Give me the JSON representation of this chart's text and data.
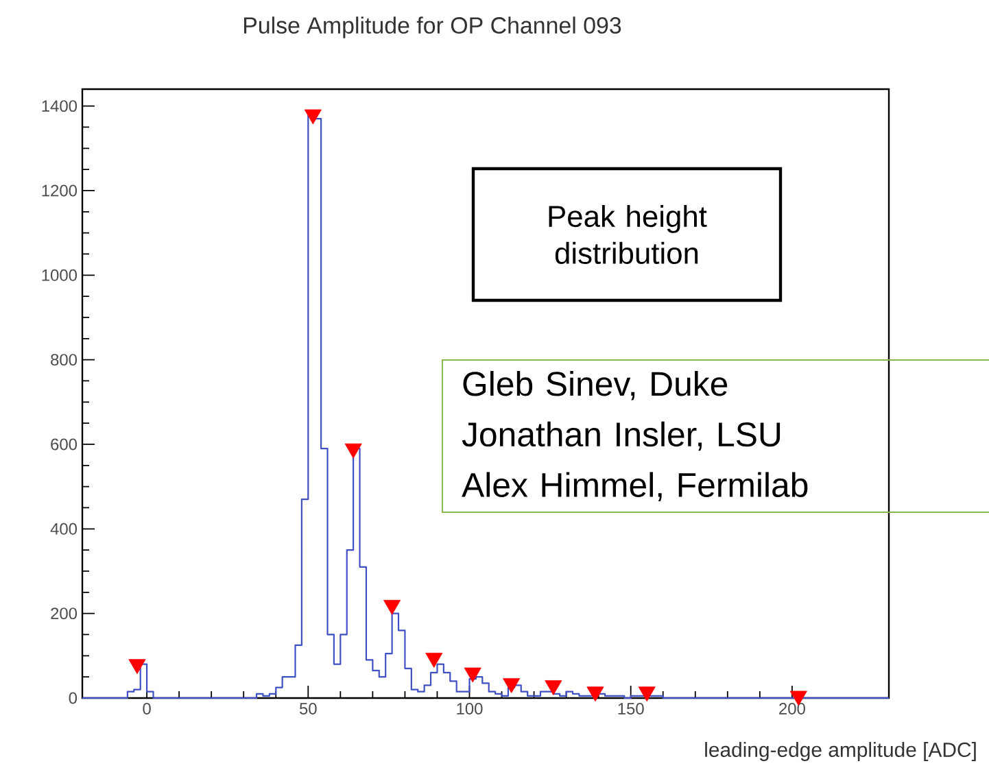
{
  "chart_data": {
    "type": "histogram",
    "title": "Pulse Amplitude for OP Channel 093",
    "xlabel": "leading-edge amplitude [ADC]",
    "annotations": [
      "Peak height distribution",
      "Gleb Sinev, Duke\nJonathan Insler, LSU\nAlex Himmel, Fermilab"
    ],
    "color": "#3f4fc4",
    "bins": [
      -20,
      -18,
      -16,
      -14,
      -12,
      -10,
      -8,
      -6,
      -4,
      -2,
      0,
      2,
      4,
      6,
      8,
      10,
      12,
      14,
      16,
      18,
      20,
      22,
      24,
      26,
      28,
      30,
      32,
      34,
      36,
      38,
      40,
      42,
      44,
      46,
      48,
      50,
      52,
      54,
      56,
      58,
      60,
      62,
      64,
      66,
      68,
      70,
      72,
      74,
      76,
      78,
      80,
      82,
      84,
      86,
      88,
      90,
      92,
      94,
      96,
      98,
      100,
      102,
      104,
      106,
      108,
      110,
      112,
      114,
      116,
      118,
      120,
      122,
      124,
      126,
      128,
      130,
      132,
      134,
      136,
      138,
      140,
      142,
      144,
      146,
      148,
      150,
      152,
      154,
      156,
      158,
      160,
      162,
      164,
      166,
      168,
      170,
      172,
      174,
      176,
      178,
      180,
      182,
      184,
      186,
      188,
      190,
      192,
      194,
      196,
      198,
      200,
      202,
      204,
      206,
      208,
      210,
      212,
      214,
      216,
      218,
      220,
      222,
      224,
      226,
      228,
      230
    ],
    "values": [
      0,
      0,
      0,
      0,
      0,
      0,
      0,
      15,
      20,
      80,
      15,
      0,
      0,
      0,
      0,
      0,
      0,
      0,
      0,
      0,
      0,
      0,
      0,
      0,
      0,
      0,
      0,
      10,
      5,
      10,
      25,
      50,
      50,
      125,
      470,
      1380,
      1370,
      590,
      150,
      80,
      150,
      350,
      590,
      310,
      90,
      65,
      50,
      105,
      200,
      160,
      70,
      20,
      15,
      30,
      60,
      80,
      60,
      40,
      15,
      15,
      45,
      50,
      35,
      15,
      10,
      5,
      25,
      30,
      15,
      5,
      5,
      15,
      15,
      10,
      5,
      15,
      10,
      5,
      5,
      10,
      10,
      5,
      5,
      5,
      0,
      5,
      5,
      5,
      5,
      5,
      0,
      0,
      0,
      0,
      0,
      0,
      0,
      0,
      0,
      0,
      0,
      0,
      0,
      0,
      0,
      0,
      0,
      0,
      0,
      0,
      0,
      0,
      0,
      0,
      0,
      0,
      0,
      0,
      0,
      0,
      0,
      0,
      0,
      0,
      0
    ],
    "series": [
      {
        "type": "scatter",
        "color": "#ff0000",
        "marker": "triangle",
        "x": [
          -3,
          51.5,
          64,
          76,
          89,
          101,
          113,
          126,
          139,
          155,
          202
        ],
        "values": [
          80,
          1380,
          590,
          220,
          95,
          60,
          35,
          30,
          15,
          15,
          5
        ]
      }
    ],
    "xlim": [
      -20,
      230
    ],
    "ylim": [
      0,
      1440
    ],
    "xticks": [
      0,
      50,
      100,
      150,
      200
    ],
    "yticks": [
      0,
      200,
      400,
      600,
      800,
      1000,
      1200,
      1400
    ]
  }
}
